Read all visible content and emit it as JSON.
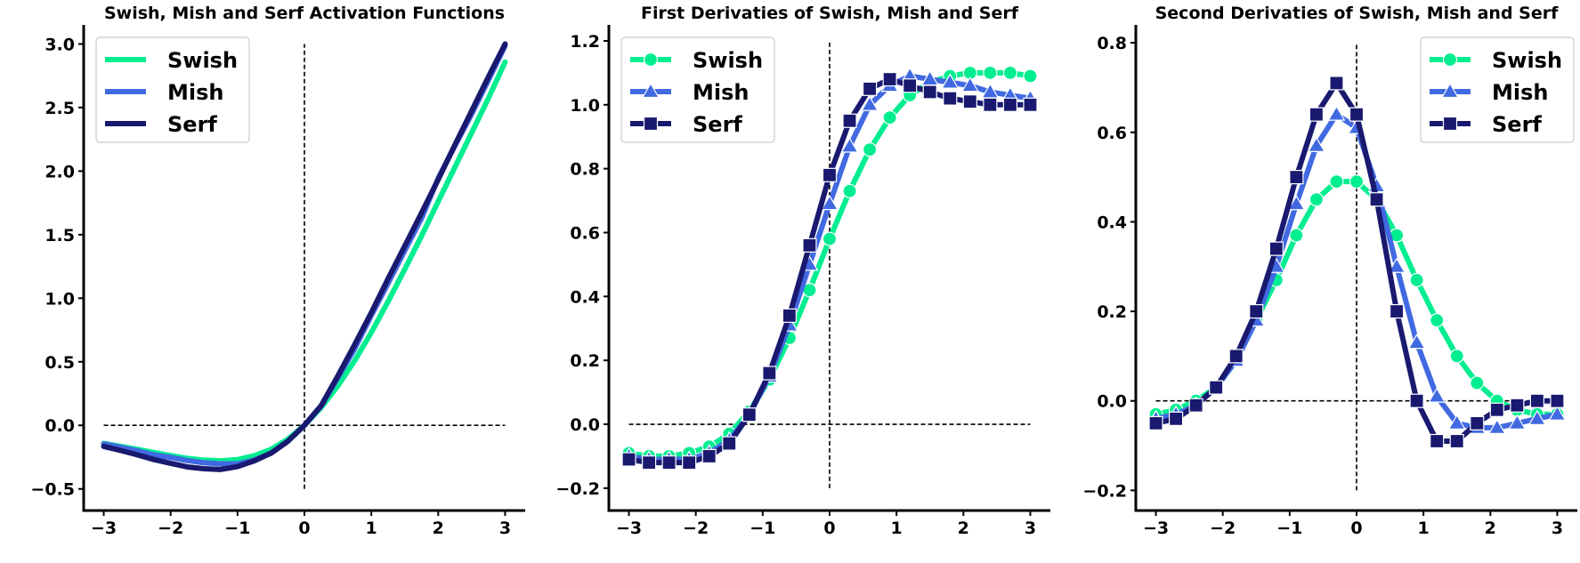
{
  "colors": {
    "swish": "#00ee90",
    "mish": "#4169e1",
    "serf": "#191970",
    "axis": "#000000",
    "reference_line": "#000000",
    "legend_border": "#cccccc"
  },
  "chart_data": [
    {
      "type": "line",
      "title": "Swish, Mish and Serf Activation Functions",
      "xlabel": "",
      "ylabel": "",
      "xlim": [
        -3.3,
        3.3
      ],
      "ylim": [
        -0.67,
        3.15
      ],
      "xticks": [
        -3,
        -2,
        -1,
        0,
        1,
        2,
        3
      ],
      "xtick_labels": [
        "−3",
        "−2",
        "−1",
        "0",
        "1",
        "2",
        "3"
      ],
      "yticks": [
        -0.5,
        0.0,
        0.5,
        1.0,
        1.5,
        2.0,
        2.5,
        3.0
      ],
      "ytick_labels": [
        "−0.5",
        "0.0",
        "0.5",
        "1.0",
        "1.5",
        "2.0",
        "2.5",
        "3.0"
      ],
      "grid": false,
      "legend_position": "upper-left",
      "markers": false,
      "reference_lines": {
        "horizontal_y": 0.0,
        "horizontal_x_range": [
          -3,
          3
        ],
        "vertical_x": 0.0,
        "vertical_y_range": [
          -0.5,
          3.0
        ]
      },
      "x": [
        -3,
        -2.75,
        -2.5,
        -2.25,
        -2,
        -1.75,
        -1.5,
        -1.25,
        -1,
        -0.75,
        -0.5,
        -0.25,
        0,
        0.25,
        0.5,
        0.75,
        1,
        1.25,
        1.5,
        1.75,
        2,
        2.25,
        2.5,
        2.75,
        3
      ],
      "series": [
        {
          "name": "Swish",
          "color_key": "swish",
          "values": [
            -0.142,
            -0.165,
            -0.189,
            -0.214,
            -0.238,
            -0.26,
            -0.274,
            -0.279,
            -0.269,
            -0.239,
            -0.189,
            -0.11,
            0.0,
            0.14,
            0.311,
            0.508,
            0.731,
            0.974,
            1.228,
            1.489,
            1.762,
            2.031,
            2.302,
            2.573,
            2.858
          ]
        },
        {
          "name": "Mish",
          "color_key": "mish",
          "values": [
            -0.146,
            -0.172,
            -0.2,
            -0.232,
            -0.252,
            -0.277,
            -0.294,
            -0.303,
            -0.303,
            -0.273,
            -0.219,
            -0.126,
            0.0,
            0.152,
            0.375,
            0.602,
            0.865,
            1.118,
            1.375,
            1.628,
            1.944,
            2.199,
            2.449,
            2.715,
            2.985
          ]
        },
        {
          "name": "Serf",
          "color_key": "serf",
          "values": [
            -0.166,
            -0.197,
            -0.232,
            -0.269,
            -0.299,
            -0.327,
            -0.341,
            -0.347,
            -0.324,
            -0.279,
            -0.219,
            -0.126,
            0.0,
            0.155,
            0.389,
            0.634,
            0.887,
            1.153,
            1.411,
            1.67,
            1.934,
            2.207,
            2.473,
            2.741,
            3.0
          ]
        }
      ]
    },
    {
      "type": "line",
      "title": "First Derivaties of Swish, Mish and Serf",
      "xlabel": "",
      "ylabel": "",
      "xlim": [
        -3.3,
        3.3
      ],
      "ylim": [
        -0.27,
        1.25
      ],
      "xticks": [
        -3,
        -2,
        -1,
        0,
        1,
        2,
        3
      ],
      "xtick_labels": [
        "−3",
        "−2",
        "−1",
        "0",
        "1",
        "2",
        "3"
      ],
      "yticks": [
        -0.2,
        0.0,
        0.2,
        0.4,
        0.6,
        0.8,
        1.0,
        1.2
      ],
      "ytick_labels": [
        "−0.2",
        "0.0",
        "0.2",
        "0.4",
        "0.6",
        "0.8",
        "1.0",
        "1.2"
      ],
      "grid": false,
      "legend_position": "upper-left",
      "markers": true,
      "reference_lines": {
        "horizontal_y": 0.0,
        "horizontal_x_range": [
          -3,
          3
        ],
        "vertical_x": 0.0,
        "vertical_y_range": [
          -0.2,
          1.2
        ]
      },
      "series": [
        {
          "name": "Swish",
          "color_key": "swish",
          "marker": "circle",
          "x": [
            -3,
            -2.7,
            -2.4,
            -2.1,
            -1.8,
            -1.5,
            -1.2,
            -0.9,
            -0.6,
            -0.3,
            0.0,
            0.3,
            0.6,
            0.9,
            1.2,
            1.5,
            1.8,
            2.1,
            2.4,
            2.7,
            3.0
          ],
          "values": [
            -0.09,
            -0.1,
            -0.1,
            -0.09,
            -0.07,
            -0.03,
            0.04,
            0.14,
            0.27,
            0.42,
            0.58,
            0.73,
            0.86,
            0.96,
            1.03,
            1.07,
            1.09,
            1.1,
            1.1,
            1.1,
            1.09
          ]
        },
        {
          "name": "Mish",
          "color_key": "mish",
          "marker": "triangle",
          "x": [
            -3,
            -2.7,
            -2.4,
            -2.1,
            -1.8,
            -1.5,
            -1.2,
            -0.9,
            -0.6,
            -0.3,
            0.0,
            0.3,
            0.6,
            0.9,
            1.2,
            1.5,
            1.8,
            2.1,
            2.4,
            2.7,
            3.0
          ],
          "values": [
            -0.1,
            -0.11,
            -0.11,
            -0.11,
            -0.09,
            -0.05,
            0.03,
            0.15,
            0.31,
            0.5,
            0.69,
            0.87,
            1.0,
            1.06,
            1.09,
            1.08,
            1.07,
            1.06,
            1.04,
            1.03,
            1.02
          ]
        },
        {
          "name": "Serf",
          "color_key": "serf",
          "marker": "square",
          "x": [
            -3,
            -2.7,
            -2.4,
            -2.1,
            -1.8,
            -1.5,
            -1.2,
            -0.9,
            -0.6,
            -0.3,
            0.0,
            0.3,
            0.6,
            0.9,
            1.2,
            1.5,
            1.8,
            2.1,
            2.4,
            2.7,
            3.0
          ],
          "values": [
            -0.11,
            -0.12,
            -0.12,
            -0.12,
            -0.1,
            -0.06,
            0.03,
            0.16,
            0.34,
            0.56,
            0.78,
            0.95,
            1.05,
            1.08,
            1.06,
            1.04,
            1.02,
            1.01,
            1.0,
            1.0,
            1.0
          ]
        }
      ]
    },
    {
      "type": "line",
      "title": "Second Derivaties of Swish, Mish and Serf",
      "xlabel": "",
      "ylabel": "",
      "xlim": [
        -3.3,
        3.3
      ],
      "ylim": [
        -0.245,
        0.84
      ],
      "xticks": [
        -3,
        -2,
        -1,
        0,
        1,
        2,
        3
      ],
      "xtick_labels": [
        "−3",
        "−2",
        "−1",
        "0",
        "1",
        "2",
        "3"
      ],
      "yticks": [
        -0.2,
        0.0,
        0.2,
        0.4,
        0.6,
        0.8
      ],
      "ytick_labels": [
        "−0.2",
        "0.0",
        "0.2",
        "0.4",
        "0.6",
        "0.8"
      ],
      "grid": false,
      "legend_position": "upper-right",
      "markers": true,
      "reference_lines": {
        "horizontal_y": 0.0,
        "horizontal_x_range": [
          -3,
          3
        ],
        "vertical_x": 0.0,
        "vertical_y_range": [
          -0.2,
          0.8
        ]
      },
      "series": [
        {
          "name": "Swish",
          "color_key": "swish",
          "marker": "circle",
          "x": [
            -3,
            -2.7,
            -2.4,
            -2.1,
            -1.8,
            -1.5,
            -1.2,
            -0.9,
            -0.6,
            -0.3,
            0.0,
            0.3,
            0.6,
            0.9,
            1.2,
            1.5,
            1.8,
            2.1,
            2.4,
            2.7,
            3.0
          ],
          "values": [
            -0.03,
            -0.02,
            0.0,
            0.03,
            0.09,
            0.18,
            0.27,
            0.37,
            0.45,
            0.49,
            0.49,
            0.45,
            0.37,
            0.27,
            0.18,
            0.1,
            0.04,
            0.0,
            -0.02,
            -0.03,
            -0.03
          ]
        },
        {
          "name": "Mish",
          "color_key": "mish",
          "marker": "triangle",
          "x": [
            -3,
            -2.7,
            -2.4,
            -2.1,
            -1.8,
            -1.5,
            -1.2,
            -0.9,
            -0.6,
            -0.3,
            0.0,
            0.3,
            0.6,
            0.9,
            1.2,
            1.5,
            1.8,
            2.1,
            2.4,
            2.7,
            3.0
          ],
          "values": [
            -0.04,
            -0.03,
            -0.01,
            0.03,
            0.09,
            0.18,
            0.3,
            0.44,
            0.57,
            0.64,
            0.61,
            0.48,
            0.3,
            0.13,
            0.01,
            -0.05,
            -0.06,
            -0.06,
            -0.05,
            -0.04,
            -0.03
          ]
        },
        {
          "name": "Serf",
          "color_key": "serf",
          "marker": "square",
          "x": [
            -3,
            -2.7,
            -2.4,
            -2.1,
            -1.8,
            -1.5,
            -1.2,
            -0.9,
            -0.6,
            -0.3,
            0.0,
            0.3,
            0.6,
            0.9,
            1.2,
            1.5,
            1.8,
            2.1,
            2.4,
            2.7,
            3.0
          ],
          "values": [
            -0.05,
            -0.04,
            -0.01,
            0.03,
            0.1,
            0.2,
            0.34,
            0.5,
            0.64,
            0.71,
            0.64,
            0.45,
            0.2,
            0.0,
            -0.09,
            -0.09,
            -0.05,
            -0.02,
            -0.01,
            0.0,
            0.0
          ]
        }
      ]
    }
  ]
}
